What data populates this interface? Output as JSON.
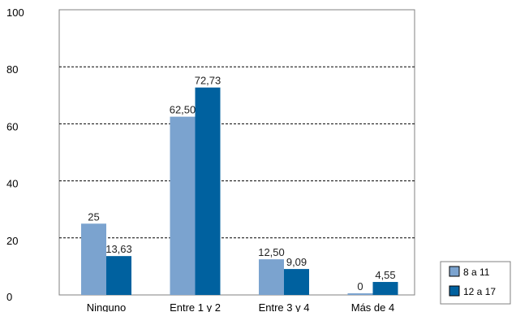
{
  "chart_data": {
    "type": "bar",
    "title": "",
    "xlabel": "",
    "ylabel": "",
    "ylim": [
      0,
      100
    ],
    "yticks": [
      "0",
      "20",
      "40",
      "60",
      "80",
      "100"
    ],
    "grid": true,
    "legend_position": "bottom-right",
    "categories": [
      "Ninguno",
      "Entre 1 y 2",
      "Entre 3 y 4",
      "Más de 4"
    ],
    "series": [
      {
        "name": "8 a 11",
        "color": "#7ba3cf",
        "values": [
          25,
          62.5,
          12.5,
          0
        ],
        "labels": [
          "25",
          "62,50",
          "12,50",
          "0"
        ]
      },
      {
        "name": "12 a 17",
        "color": "#00619f",
        "values": [
          13.63,
          72.73,
          9.09,
          4.55
        ],
        "labels": [
          "13,63",
          "72,73",
          "9,09",
          "4,55"
        ]
      }
    ]
  }
}
